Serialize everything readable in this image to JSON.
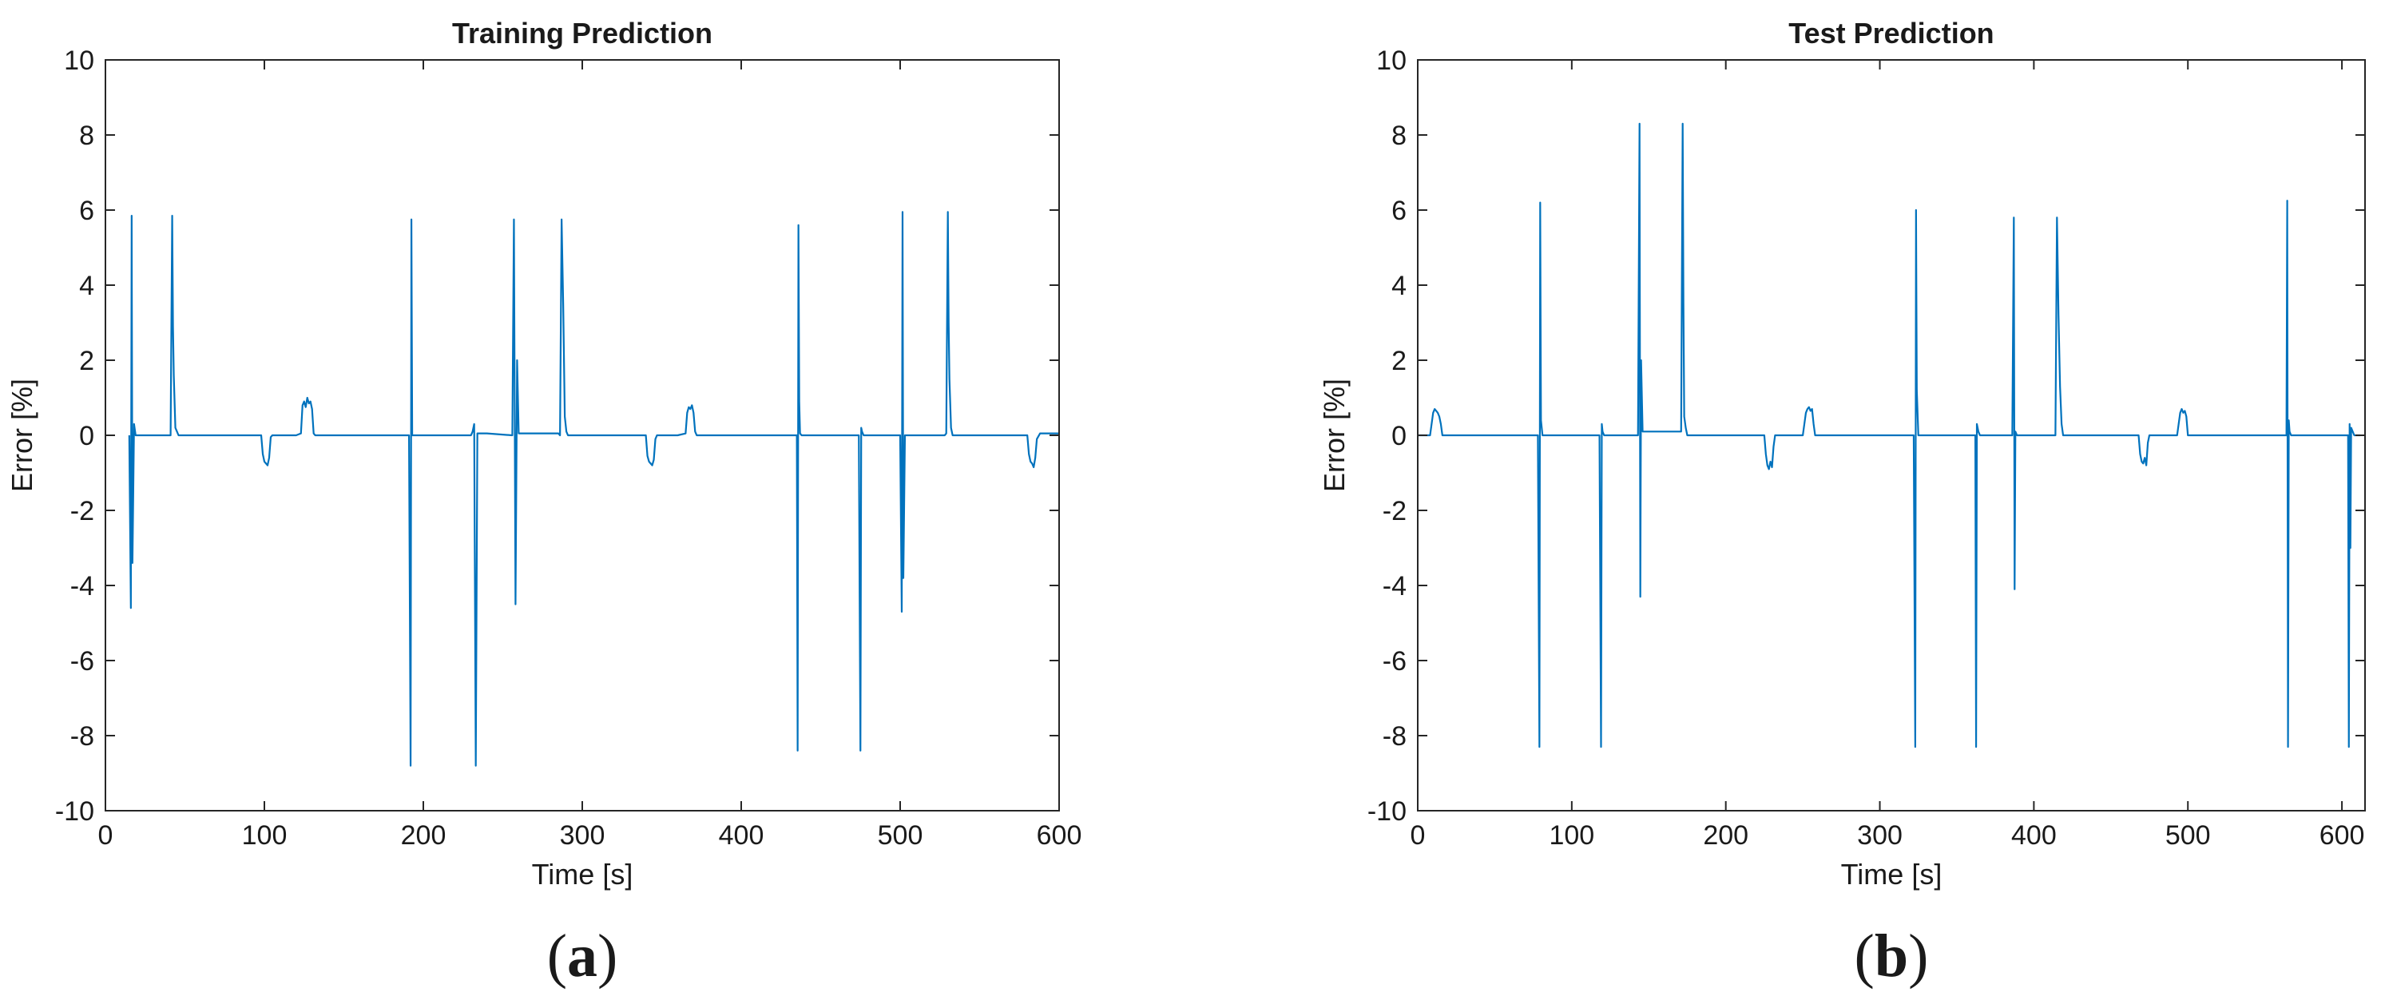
{
  "chart_data": [
    {
      "type": "line",
      "title": "Training Prediction",
      "xlabel": "Time [s]",
      "ylabel": "Error [%]",
      "xlim": [
        0,
        600
      ],
      "ylim": [
        -10,
        10
      ],
      "xticks": [
        0,
        100,
        200,
        300,
        400,
        500,
        600
      ],
      "yticks": [
        -10,
        -8,
        -6,
        -4,
        -2,
        0,
        2,
        4,
        6,
        8,
        10
      ],
      "panel_label": "a",
      "color": "#0072bd",
      "series": [
        {
          "x": [
            15,
            16,
            16.5,
            17,
            18,
            19,
            41,
            42,
            42.5,
            43,
            44,
            46,
            98,
            99,
            100,
            101,
            102,
            103,
            104,
            105,
            120,
            123,
            124,
            125,
            126,
            127,
            128,
            129,
            130,
            131,
            132,
            191,
            192,
            192.5,
            193,
            194,
            210,
            230,
            231,
            232,
            233,
            234,
            240,
            256,
            257,
            258,
            259,
            260,
            285,
            286,
            287,
            288,
            289,
            290,
            291,
            340,
            341,
            342,
            343,
            344,
            345,
            346,
            347,
            360,
            365,
            366,
            367,
            368,
            369,
            370,
            371,
            372,
            435,
            435.5,
            436,
            436.5,
            437,
            438,
            474,
            475,
            475.5,
            476,
            477,
            500,
            501,
            501.5,
            502,
            503,
            528,
            529,
            530,
            530.5,
            531,
            532,
            533,
            580,
            581,
            582,
            583,
            584,
            585,
            586,
            588,
            600
          ],
          "y": [
            0,
            -4.6,
            5.85,
            -3.4,
            0.3,
            0,
            0,
            5.85,
            2.9,
            1.6,
            0.2,
            0,
            0,
            -0.5,
            -0.7,
            -0.75,
            -0.8,
            -0.6,
            -0.05,
            0,
            0,
            0.05,
            0.8,
            0.9,
            0.75,
            1.0,
            0.85,
            0.9,
            0.7,
            0.05,
            0,
            0,
            -8.8,
            5.75,
            0,
            0,
            0,
            0,
            0.1,
            0.3,
            -8.8,
            0.05,
            0.05,
            0,
            5.75,
            -4.5,
            2.0,
            0.05,
            0.05,
            0,
            5.75,
            3.5,
            0.5,
            0.1,
            0,
            0,
            -0.55,
            -0.7,
            -0.75,
            -0.8,
            -0.65,
            -0.1,
            0,
            0,
            0.05,
            0.6,
            0.75,
            0.7,
            0.8,
            0.6,
            0.1,
            0,
            0,
            -8.4,
            5.6,
            0.9,
            0.05,
            0,
            0,
            -8.4,
            0.2,
            0.1,
            0,
            0,
            -4.7,
            5.95,
            -3.8,
            0,
            0,
            0.05,
            5.95,
            3.0,
            1.5,
            0.2,
            0,
            0,
            -0.5,
            -0.7,
            -0.75,
            -0.85,
            -0.6,
            -0.1,
            0.05,
            0.05
          ]
        }
      ]
    },
    {
      "type": "line",
      "title": "Test Prediction",
      "xlabel": "Time [s]",
      "ylabel": "Error [%]",
      "xlim": [
        0,
        615
      ],
      "ylim": [
        -10,
        10
      ],
      "xticks": [
        0,
        100,
        200,
        300,
        400,
        500,
        600
      ],
      "yticks": [
        -10,
        -8,
        -6,
        -4,
        -2,
        0,
        2,
        4,
        6,
        8,
        10
      ],
      "panel_label": "b",
      "color": "#0072bd",
      "series": [
        {
          "x": [
            0,
            8,
            9,
            10,
            11,
            12,
            13,
            14,
            15,
            16,
            18,
            78,
            79,
            79.5,
            80,
            81,
            118,
            119,
            119.5,
            120,
            121,
            143,
            144,
            144.5,
            145,
            146,
            171,
            172,
            172.5,
            173,
            174,
            175,
            225,
            226,
            227,
            228,
            229,
            230,
            231,
            232,
            250,
            251,
            252,
            253,
            254,
            255,
            256,
            257,
            258,
            322,
            323,
            323.5,
            324,
            325,
            362,
            362.5,
            363,
            363.5,
            364,
            365,
            386,
            387,
            387.5,
            388,
            389,
            414,
            415,
            416,
            417,
            418,
            419,
            468,
            469,
            470,
            471,
            472,
            473,
            474,
            475,
            493,
            494,
            495,
            496,
            497,
            498,
            499,
            500,
            564,
            564.5,
            565,
            565.5,
            566,
            567,
            604,
            604.5,
            605,
            605.5,
            606,
            608,
            612
          ],
          "y": [
            0,
            0,
            0.3,
            0.6,
            0.7,
            0.65,
            0.6,
            0.5,
            0.3,
            0,
            0,
            0,
            -8.3,
            6.2,
            0.4,
            0,
            0,
            -8.3,
            0.3,
            0.1,
            0,
            0,
            8.3,
            -4.3,
            2.0,
            0.1,
            0.1,
            8.3,
            3.5,
            0.5,
            0.2,
            0,
            0,
            -0.5,
            -0.8,
            -0.9,
            -0.7,
            -0.85,
            -0.3,
            0,
            0,
            0.3,
            0.6,
            0.7,
            0.75,
            0.65,
            0.7,
            0.3,
            0,
            0,
            -8.3,
            6.0,
            1.2,
            0,
            0,
            -8.3,
            0.3,
            0.2,
            0.1,
            0,
            0,
            5.8,
            -4.1,
            0.1,
            0,
            0,
            5.8,
            3.2,
            1.3,
            0.3,
            0,
            0,
            -0.5,
            -0.7,
            -0.75,
            -0.6,
            -0.8,
            -0.2,
            0,
            0,
            0.3,
            0.6,
            0.7,
            0.6,
            0.65,
            0.5,
            0,
            0,
            6.25,
            -8.3,
            0.4,
            0.1,
            0,
            0,
            -8.3,
            0.3,
            -3.0,
            0.2,
            0,
            0
          ]
        }
      ]
    }
  ]
}
